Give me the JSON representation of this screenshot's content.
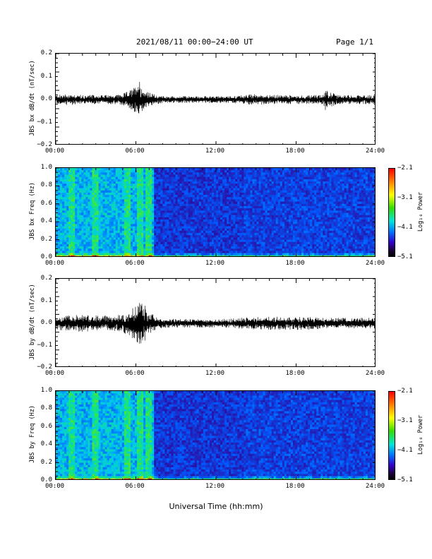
{
  "header": {
    "title": "2021/08/11  00:00−24:00 UT",
    "page": "Page 1/1"
  },
  "x_axis_title": "Universal Time (hh:mm)",
  "time_ticks": [
    "00:00",
    "06:00",
    "12:00",
    "18:00",
    "24:00"
  ],
  "chart_data": [
    {
      "type": "line",
      "ylabel": "JBS bx dB/dt (nT/sec)",
      "ylim": [
        -0.2,
        0.2
      ],
      "yticks": [
        "0.2",
        "0.1",
        "0.0",
        "−0.1",
        "−0.2"
      ],
      "xlim_hours": [
        0,
        24
      ],
      "series": [
        {
          "x_hours": [
            0,
            1,
            2,
            3,
            4,
            5,
            5.5,
            6,
            6.2,
            6.5,
            7,
            8,
            9,
            10,
            11,
            12,
            13,
            14,
            15,
            16,
            17,
            18,
            19,
            20,
            20.2,
            21,
            22,
            23,
            24
          ],
          "envelope": [
            0.02,
            0.025,
            0.02,
            0.02,
            0.02,
            0.025,
            0.04,
            0.06,
            0.1,
            0.05,
            0.03,
            0.015,
            0.015,
            0.015,
            0.015,
            0.015,
            0.015,
            0.02,
            0.025,
            0.02,
            0.02,
            0.02,
            0.02,
            0.02,
            0.05,
            0.02,
            0.02,
            0.02,
            0.02
          ]
        }
      ]
    },
    {
      "type": "heatmap",
      "ylabel": "JBS bx Freq (Hz)",
      "ylim": [
        0.0,
        1.0
      ],
      "yticks": [
        "1.0",
        "0.8",
        "0.6",
        "0.4",
        "0.2",
        "0.0"
      ],
      "xlim_hours": [
        0,
        24
      ],
      "colorbar": {
        "label": "Log₁₀ Power",
        "ticks": [
          "−2.1",
          "−3.1",
          "−4.1",
          "−5.1"
        ],
        "range": [
          -5.1,
          -2.1
        ]
      },
      "active_interval_hours": [
        0,
        7.3
      ],
      "bright_stripes_hours": [
        1.2,
        3.0,
        5.4,
        6.3,
        6.9
      ]
    },
    {
      "type": "line",
      "ylabel": "JBS by dB/dt (nT/sec)",
      "ylim": [
        -0.2,
        0.2
      ],
      "yticks": [
        "0.2",
        "0.1",
        "0.0",
        "−0.1",
        "−0.2"
      ],
      "xlim_hours": [
        0,
        24
      ],
      "series": [
        {
          "x_hours": [
            0,
            1,
            2,
            3,
            4,
            5,
            5.5,
            6,
            6.3,
            6.6,
            7,
            8,
            9,
            10,
            11,
            12,
            13,
            14,
            15,
            16,
            17,
            18,
            19,
            20,
            21,
            22,
            23,
            24
          ],
          "envelope": [
            0.03,
            0.035,
            0.04,
            0.035,
            0.035,
            0.04,
            0.06,
            0.08,
            0.1,
            0.09,
            0.05,
            0.02,
            0.02,
            0.02,
            0.02,
            0.02,
            0.02,
            0.025,
            0.03,
            0.03,
            0.03,
            0.03,
            0.03,
            0.025,
            0.025,
            0.025,
            0.025,
            0.025
          ]
        }
      ]
    },
    {
      "type": "heatmap",
      "ylabel": "JBS by Freq (Hz)",
      "ylim": [
        0.0,
        1.0
      ],
      "yticks": [
        "1.0",
        "0.8",
        "0.6",
        "0.4",
        "0.2",
        "0.0"
      ],
      "xlim_hours": [
        0,
        24
      ],
      "colorbar": {
        "label": "Log₁₀ Power",
        "ticks": [
          "−2.1",
          "−3.1",
          "−4.1",
          "−5.1"
        ],
        "range": [
          -5.1,
          -2.1
        ]
      },
      "active_interval_hours": [
        0,
        7.3
      ],
      "bright_stripes_hours": [
        1.2,
        3.0,
        5.4,
        6.3,
        6.9
      ]
    }
  ]
}
